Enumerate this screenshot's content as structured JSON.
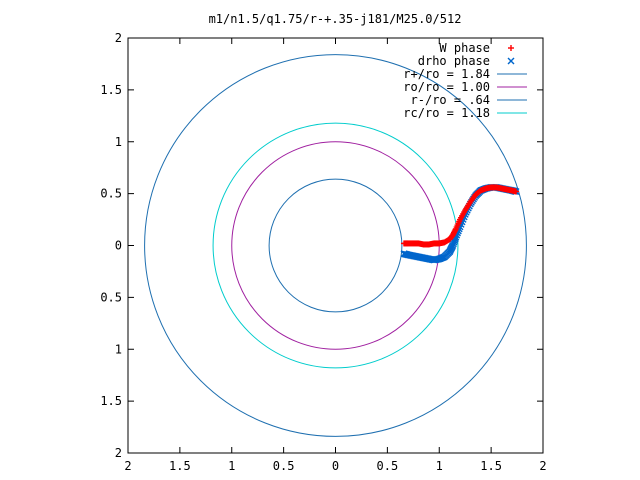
{
  "chart_data": {
    "type": "scatter",
    "title": "m1/n1.5/q1.75/r-+.35-j181/M25.0/512",
    "xlabel": "",
    "ylabel": "",
    "xlim": [
      -2,
      2
    ],
    "ylim": [
      -2,
      2
    ],
    "x_tick_values": [
      -2,
      -1.5,
      -1,
      -0.5,
      0,
      0.5,
      1,
      1.5,
      2
    ],
    "x_tick_labels": [
      "2",
      "1.5",
      "1",
      "0.5",
      "0",
      "0.5",
      "1",
      "1.5",
      "2"
    ],
    "y_tick_values": [
      2,
      1.5,
      1,
      0.5,
      0,
      -0.5,
      -1,
      -1.5,
      -2
    ],
    "y_tick_labels": [
      "2",
      "1.5",
      "1",
      "0.5",
      "0",
      "0.5",
      "1",
      "1.5",
      "2"
    ],
    "grid": false,
    "legend_position": "top-right",
    "series": [
      {
        "name": "W phase",
        "kind": "points",
        "marker": "plus",
        "color": "#ff0000",
        "x": [
          0.66,
          0.7,
          0.75,
          0.8,
          0.85,
          0.9,
          0.95,
          1.0,
          1.05,
          1.1,
          1.13,
          1.16,
          1.2,
          1.25,
          1.3,
          1.35,
          1.4,
          1.45,
          1.5,
          1.55,
          1.6,
          1.65,
          1.7,
          1.74
        ],
        "y": [
          0.02,
          0.02,
          0.02,
          0.02,
          0.01,
          0.01,
          0.02,
          0.02,
          0.03,
          0.06,
          0.1,
          0.16,
          0.25,
          0.34,
          0.42,
          0.49,
          0.53,
          0.55,
          0.56,
          0.56,
          0.55,
          0.54,
          0.53,
          0.52
        ]
      },
      {
        "name": "drho phase",
        "kind": "points",
        "marker": "x",
        "color": "#0066cc",
        "x": [
          0.66,
          0.7,
          0.75,
          0.8,
          0.85,
          0.9,
          0.95,
          1.0,
          1.05,
          1.1,
          1.13,
          1.16,
          1.2,
          1.25,
          1.3,
          1.35,
          1.4,
          1.45,
          1.5,
          1.55,
          1.6,
          1.65,
          1.7,
          1.74
        ],
        "y": [
          -0.08,
          -0.09,
          -0.1,
          -0.11,
          -0.12,
          -0.13,
          -0.14,
          -0.13,
          -0.11,
          -0.06,
          0.0,
          0.08,
          0.18,
          0.3,
          0.4,
          0.48,
          0.53,
          0.55,
          0.56,
          0.56,
          0.55,
          0.54,
          0.53,
          0.52
        ]
      },
      {
        "name": "r+/ro = 1.84",
        "kind": "circle",
        "radius": 1.84,
        "color": "#1e6fb0"
      },
      {
        "name": "ro/ro = 1.00",
        "kind": "circle",
        "radius": 1.0,
        "color": "#a020a0"
      },
      {
        "name": "r-/ro = .64",
        "kind": "circle",
        "radius": 0.64,
        "color": "#1e6fb0"
      },
      {
        "name": "rc/ro = 1.18",
        "kind": "circle",
        "radius": 1.18,
        "color": "#00cccc"
      }
    ]
  }
}
